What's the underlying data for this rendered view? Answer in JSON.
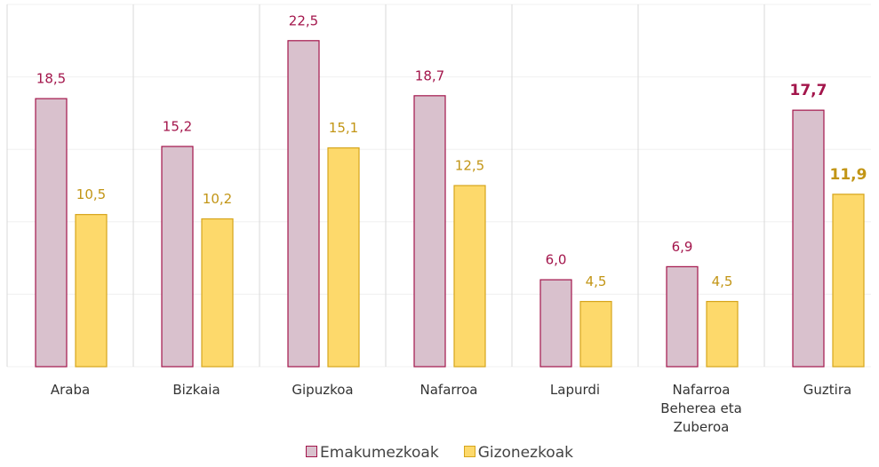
{
  "chart_data": {
    "type": "bar",
    "categories": [
      "Araba",
      "Bizkaia",
      "Gipuzkoa",
      "Nafarroa",
      "Lapurdi",
      "Nafarroa Beherea eta Zuberoa",
      "Guztira"
    ],
    "series": [
      {
        "name": "Emakumezkoak",
        "color": "#d9c1cd",
        "stroke": "#a3154b",
        "label_color": "#a3154b",
        "values": [
          18.5,
          15.2,
          22.5,
          18.7,
          6.0,
          6.9,
          17.7
        ],
        "value_labels": [
          "18,5",
          "15,2",
          "22,5",
          "18,7",
          "6,0",
          "6,9",
          "17,7"
        ]
      },
      {
        "name": "Gizonezkoak",
        "color": "#fdd96b",
        "stroke": "#d6a51c",
        "label_color": "#c29515",
        "values": [
          10.5,
          10.2,
          15.1,
          12.5,
          4.5,
          4.5,
          11.9
        ],
        "value_labels": [
          "10,5",
          "10,2",
          "15,1",
          "12,5",
          "4,5",
          "4,5",
          "11,9"
        ]
      }
    ],
    "ylim": [
      0,
      25
    ],
    "yticks": [
      0,
      5,
      10,
      15,
      20,
      25
    ],
    "grid": true,
    "bold_categories": [
      6
    ],
    "legend": "bottom"
  }
}
